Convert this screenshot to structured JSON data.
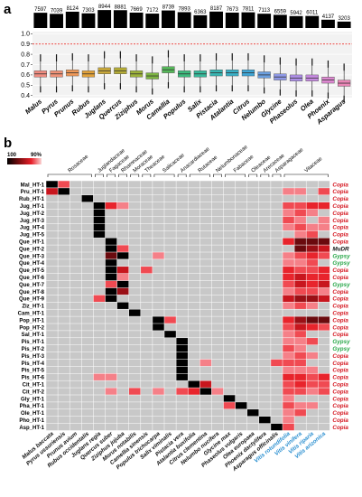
{
  "panel_labels": [
    "a",
    "b"
  ],
  "chart_data": [
    {
      "type": "box",
      "categories": [
        "Malus",
        "Pyrus",
        "Prunus",
        "Rubus",
        "Juglans",
        "Quercus",
        "Ziziphus",
        "Morus",
        "Camellia",
        "Populus",
        "Salix",
        "Pistacia",
        "Atalantia",
        "Citrus",
        "Nelumbo",
        "Glycine",
        "Phaseolus",
        "Olea",
        "Phoenix",
        "Asparagus"
      ],
      "counts": [
        7597,
        7039,
        8124,
        7303,
        8944,
        8881,
        7669,
        7172,
        8739,
        7893,
        6363,
        8187,
        7673,
        7811,
        7113,
        6559,
        5942,
        6011,
        4137,
        3203
      ],
      "medians": [
        0.61,
        0.61,
        0.62,
        0.61,
        0.64,
        0.64,
        0.61,
        0.59,
        0.65,
        0.61,
        0.61,
        0.62,
        0.62,
        0.62,
        0.6,
        0.58,
        0.57,
        0.57,
        0.55,
        0.52
      ],
      "q1": [
        0.58,
        0.58,
        0.59,
        0.58,
        0.61,
        0.61,
        0.58,
        0.56,
        0.62,
        0.58,
        0.58,
        0.59,
        0.59,
        0.59,
        0.57,
        0.55,
        0.54,
        0.54,
        0.52,
        0.49
      ],
      "q3": [
        0.64,
        0.64,
        0.65,
        0.64,
        0.67,
        0.67,
        0.64,
        0.62,
        0.68,
        0.64,
        0.64,
        0.65,
        0.65,
        0.65,
        0.63,
        0.61,
        0.6,
        0.6,
        0.58,
        0.55
      ],
      "colors": [
        "#f08c80",
        "#f09278",
        "#ee9858",
        "#e2a23a",
        "#c9a83a",
        "#b6ad36",
        "#9cb23a",
        "#7cb542",
        "#56b85a",
        "#3cba7c",
        "#36b99a",
        "#38b5b2",
        "#3ab0c6",
        "#3fa6d6",
        "#6a9fe0",
        "#8e98e6",
        "#ad8fe6",
        "#c68ae0",
        "#dc88d0",
        "#ea86b6"
      ],
      "yticks": [
        0.4,
        0.5,
        0.6,
        0.7,
        0.8,
        0.9,
        1.0
      ],
      "ylim": [
        0.38,
        1.02
      ],
      "threshold": 0.9,
      "bar_max": 9000
    },
    {
      "type": "heatmap",
      "legend": {
        "min_label": "100",
        "max_label": "90%"
      },
      "families": [
        {
          "name": "Rosaceae",
          "cols": [
            0,
            3
          ]
        },
        {
          "name": "Juglandaceae",
          "cols": [
            4,
            4
          ]
        },
        {
          "name": "Fagaceae",
          "cols": [
            5,
            5
          ]
        },
        {
          "name": "Rhamnaceae",
          "cols": [
            6,
            6
          ]
        },
        {
          "name": "Moraceae",
          "cols": [
            7,
            7
          ]
        },
        {
          "name": "Theaceae",
          "cols": [
            8,
            8
          ]
        },
        {
          "name": "Salicaceae",
          "cols": [
            9,
            10
          ]
        },
        {
          "name": "Anacardiaceae",
          "cols": [
            11,
            11
          ]
        },
        {
          "name": "Rutaceae",
          "cols": [
            12,
            13
          ]
        },
        {
          "name": "Nelumbonaceae",
          "cols": [
            14,
            14
          ]
        },
        {
          "name": "Fabaceae",
          "cols": [
            15,
            16
          ]
        },
        {
          "name": "Oleaceae",
          "cols": [
            17,
            17
          ]
        },
        {
          "name": "Arecaceae",
          "cols": [
            18,
            18
          ]
        },
        {
          "name": "Asparagaceae",
          "cols": [
            19,
            19
          ]
        },
        {
          "name": "Vitaceae",
          "cols": [
            20,
            23
          ]
        }
      ],
      "columns": [
        "Malus baccata",
        "Pyrus ussuriensis",
        "Prunus avium",
        "Rubus occidentalis",
        "Juglans regia",
        "Quercus suber",
        "Ziziphus jujuba",
        "Morus notabilis",
        "Camellia sinensis",
        "Populus trichocarpa",
        "Salix viminalis",
        "Pistacia vera",
        "Atalantia buxifolia",
        "Citrus clementina",
        "Nelumbo nucifera",
        "Glycine max",
        "Phaseolus vulgaris",
        "Olea europaea",
        "Phoenix dactylifera",
        "Asparagus officinalis",
        "Vitis rotundifolia",
        "Vitis vinifera",
        "Vitis riparia",
        "Vitis arizonica"
      ],
      "columns_highlight": [
        20,
        21,
        22,
        23
      ],
      "rows": [
        "Mal_HT-1",
        "Pru_HT-1",
        "Rub_HT-1",
        "Jug_HT-1",
        "Jug_HT-2",
        "Jug_HT-3",
        "Jug_HT-4",
        "Jug_HT-5",
        "Que_HT-1",
        "Que_HT-2",
        "Que_HT-3",
        "Que_HT-4",
        "Que_HT-5",
        "Que_HT-6",
        "Que_HT-7",
        "Que_HT-8",
        "Que_HT-9",
        "Ziz_HT-1",
        "Cam_HT-1",
        "Pop_HT-1",
        "Pop_HT-2",
        "Sal_HT-1",
        "Pis_HT-1",
        "Pis_HT-2",
        "Pis_HT-3",
        "Pis_HT-4",
        "Pis_HT-5",
        "Pis_HT-6",
        "Cit_HT-1",
        "Cit_HT-2",
        "Gly_HT-1",
        "Pha_HT-1",
        "Ole_HT-1",
        "Pho_HT-1",
        "Asp_HT-1"
      ],
      "superfamilies": [
        "Copia",
        "Copia",
        "Copia",
        "Copia",
        "Copia",
        "Copia",
        "Copia",
        "Copia",
        "Copia",
        "MuDR",
        "Gypsy",
        "Gypsy",
        "Copia",
        "Copia",
        "Gypsy",
        "Copia",
        "Copia",
        "Copia",
        "Copia",
        "Copia",
        "Copia",
        "Copia",
        "Gypsy",
        "Gypsy",
        "Copia",
        "Copia",
        "Copia",
        "Copia",
        "Copia",
        "Copia",
        "Copia",
        "Copia",
        "Copia",
        "Copia",
        "Copia"
      ],
      "sf_colors": {
        "Copia": "#d4141e",
        "MuDR": "#111111",
        "Gypsy": "#2aa84a"
      },
      "empty_color": "#c8c8c8",
      "cells": [
        [
          [
            0,
            100
          ],
          [
            1,
            93
          ]
        ],
        [
          [
            1,
            100
          ],
          [
            0,
            95
          ],
          [
            20,
            92
          ],
          [
            21,
            92
          ],
          [
            23,
            93
          ]
        ],
        [
          [
            3,
            100
          ]
        ],
        [
          [
            4,
            100
          ],
          [
            5,
            94
          ],
          [
            6,
            92
          ],
          [
            20,
            93
          ],
          [
            21,
            93
          ],
          [
            22,
            94
          ],
          [
            23,
            94
          ]
        ],
        [
          [
            4,
            100
          ],
          [
            20,
            92
          ],
          [
            21,
            93
          ],
          [
            22,
            92
          ]
        ],
        [
          [
            4,
            100
          ],
          [
            20,
            93
          ],
          [
            21,
            92
          ],
          [
            23,
            92
          ]
        ],
        [
          [
            4,
            100
          ],
          [
            20,
            92
          ],
          [
            21,
            93
          ],
          [
            22,
            92
          ],
          [
            23,
            92
          ]
        ],
        [
          [
            4,
            100
          ],
          [
            21,
            92
          ],
          [
            22,
            93
          ]
        ],
        [
          [
            5,
            100
          ],
          [
            20,
            94
          ],
          [
            21,
            98
          ],
          [
            22,
            99
          ],
          [
            23,
            97
          ]
        ],
        [
          [
            5,
            100
          ],
          [
            6,
            93
          ],
          [
            21,
            97
          ],
          [
            22,
            96
          ],
          [
            23,
            95
          ]
        ],
        [
          [
            5,
            97
          ],
          [
            6,
            100
          ],
          [
            9,
            92
          ],
          [
            20,
            92
          ],
          [
            21,
            93
          ],
          [
            22,
            94
          ],
          [
            23,
            93
          ]
        ],
        [
          [
            5,
            100
          ],
          [
            20,
            92
          ],
          [
            21,
            92
          ],
          [
            22,
            93
          ]
        ],
        [
          [
            5,
            100
          ],
          [
            6,
            95
          ],
          [
            8,
            93
          ],
          [
            20,
            94
          ],
          [
            21,
            93
          ],
          [
            22,
            93
          ],
          [
            23,
            94
          ]
        ],
        [
          [
            5,
            100
          ],
          [
            6,
            92
          ],
          [
            20,
            94
          ],
          [
            21,
            95
          ],
          [
            22,
            94
          ],
          [
            23,
            94
          ]
        ],
        [
          [
            5,
            93
          ],
          [
            6,
            100
          ],
          [
            20,
            93
          ],
          [
            21,
            95
          ],
          [
            22,
            94
          ],
          [
            23,
            95
          ]
        ],
        [
          [
            5,
            100
          ],
          [
            6,
            96
          ],
          [
            20,
            92
          ],
          [
            21,
            93
          ],
          [
            22,
            93
          ],
          [
            23,
            92
          ]
        ],
        [
          [
            5,
            100
          ],
          [
            4,
            93
          ],
          [
            20,
            95
          ],
          [
            21,
            96
          ],
          [
            22,
            96
          ],
          [
            23,
            95
          ]
        ],
        [
          [
            6,
            100
          ],
          [
            20,
            92
          ],
          [
            21,
            93
          ],
          [
            22,
            92
          ]
        ],
        [
          [
            7,
            100
          ]
        ],
        [
          [
            9,
            100
          ],
          [
            10,
            93
          ],
          [
            20,
            94
          ],
          [
            21,
            96
          ],
          [
            22,
            98
          ],
          [
            23,
            97
          ]
        ],
        [
          [
            9,
            100
          ],
          [
            20,
            93
          ],
          [
            21,
            95
          ],
          [
            22,
            94
          ],
          [
            23,
            93
          ]
        ],
        [
          [
            10,
            100
          ],
          [
            20,
            92
          ],
          [
            21,
            93
          ]
        ],
        [
          [
            11,
            100
          ],
          [
            20,
            92
          ],
          [
            21,
            92
          ],
          [
            22,
            93
          ]
        ],
        [
          [
            11,
            100
          ],
          [
            20,
            93
          ],
          [
            21,
            92
          ]
        ],
        [
          [
            11,
            100
          ],
          [
            20,
            92
          ],
          [
            21,
            93
          ],
          [
            22,
            92
          ]
        ],
        [
          [
            11,
            100
          ],
          [
            13,
            92
          ],
          [
            19,
            93
          ],
          [
            20,
            93
          ],
          [
            21,
            93
          ]
        ],
        [
          [
            11,
            100
          ],
          [
            20,
            92
          ],
          [
            21,
            92
          ],
          [
            22,
            92
          ]
        ],
        [
          [
            11,
            100
          ],
          [
            4,
            92
          ],
          [
            5,
            92
          ],
          [
            20,
            94
          ],
          [
            21,
            94
          ],
          [
            22,
            93
          ],
          [
            23,
            94
          ]
        ],
        [
          [
            12,
            100
          ],
          [
            13,
            95
          ],
          [
            20,
            93
          ],
          [
            21,
            94
          ],
          [
            22,
            93
          ],
          [
            23,
            93
          ]
        ],
        [
          [
            13,
            100
          ],
          [
            5,
            92
          ],
          [
            7,
            93
          ],
          [
            9,
            92
          ],
          [
            11,
            93
          ],
          [
            12,
            94
          ],
          [
            14,
            92
          ],
          [
            20,
            93
          ],
          [
            21,
            93
          ],
          [
            22,
            92
          ],
          [
            23,
            93
          ]
        ],
        [
          [
            15,
            100
          ],
          [
            20,
            92
          ]
        ],
        [
          [
            16,
            100
          ],
          [
            15,
            93
          ],
          [
            20,
            93
          ],
          [
            21,
            92
          ],
          [
            22,
            92
          ]
        ],
        [
          [
            17,
            100
          ],
          [
            20,
            92
          ],
          [
            21,
            93
          ]
        ],
        [
          [
            18,
            100
          ],
          [
            20,
            92
          ]
        ],
        [
          [
            19,
            100
          ],
          [
            20,
            93
          ]
        ]
      ]
    }
  ]
}
